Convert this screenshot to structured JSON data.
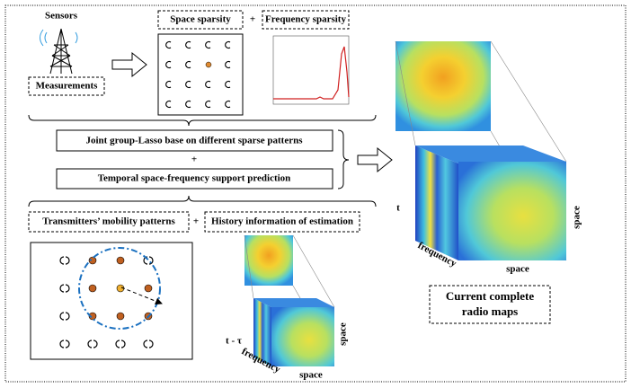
{
  "sensors": {
    "label": "Sensors",
    "box": "Measurements"
  },
  "sparsity": {
    "space": "Space sparsity",
    "plus": "+",
    "frequency": "Frequency sparsity"
  },
  "methods": {
    "joint": "Joint group-Lasso base on different sparse patterns",
    "plus": "+",
    "temporal": "Temporal space-frequency support prediction"
  },
  "history": {
    "mobility": "Transmitters’ mobility patterns",
    "plus": "+",
    "estimation": "History information of estimation"
  },
  "small_cube": {
    "time": "t - τ",
    "frequency": "frequency",
    "space_bottom": "space",
    "space_side": "space"
  },
  "big_cube": {
    "time": "t",
    "frequency": "frequency",
    "space_bottom": "space",
    "space_side": "space"
  },
  "result": {
    "line1": "Current complete",
    "line2": "radio maps"
  }
}
